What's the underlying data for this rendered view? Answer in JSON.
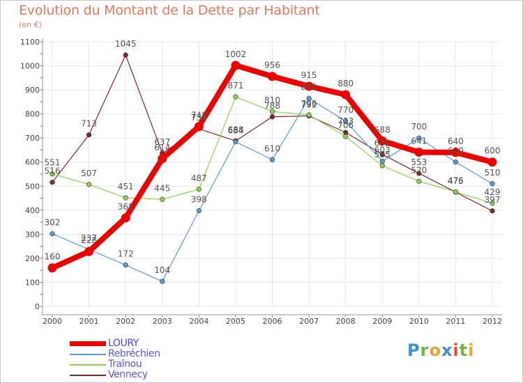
{
  "title": "Evolution du Montant de la Dette par Habitant",
  "subtitle": "(en €)",
  "logo": {
    "letters": [
      "P",
      "r",
      "o",
      "x",
      "i",
      "t",
      "i"
    ]
  },
  "chart_data": {
    "type": "line",
    "title": "Evolution du Montant de la Dette par Habitant",
    "ylabel": "(en €)",
    "xlabel": "",
    "ylim": [
      0,
      1100
    ],
    "yticks": [
      0,
      100,
      200,
      300,
      400,
      500,
      600,
      700,
      800,
      900,
      1000,
      1100
    ],
    "grid": true,
    "legend_position": "bottom-left",
    "x": [
      "2000",
      "2001",
      "2002",
      "2003",
      "2004",
      "2005",
      "2006",
      "2007",
      "2008",
      "2009",
      "2010",
      "2011",
      "2012"
    ],
    "series": [
      {
        "name": "LOURY",
        "color": "#ee0000",
        "values": [
          160,
          228,
          368,
          614,
          748,
          1002,
          956,
          915,
          880,
          688,
          641,
          640,
          600
        ]
      },
      {
        "name": "Rebréchien",
        "color": "#5b9bd5",
        "values": [
          302,
          237,
          172,
          104,
          398,
          684,
          610,
          865,
          770,
          603,
          700,
          600,
          510
        ]
      },
      {
        "name": "Traînou",
        "color": "#8fd14f",
        "values": [
          551,
          507,
          451,
          445,
          487,
          871,
          810,
          796,
          706,
          585,
          520,
          476,
          429
        ]
      },
      {
        "name": "Vennecy",
        "color": "#7b2b2b",
        "values": [
          516,
          713,
          1045,
          637,
          738,
          688,
          788,
          792,
          723,
          632,
          553,
          475,
          397
        ]
      }
    ],
    "data_labels": [
      [
        "160",
        "228",
        "368",
        "614",
        "748",
        "1002",
        "956",
        "915",
        "880",
        "688",
        "641",
        "640",
        "600"
      ],
      [
        "302",
        "237",
        "172",
        "104",
        "398",
        "684",
        "610",
        "865",
        "770",
        "603",
        "700",
        "600",
        "510"
      ],
      [
        "551",
        "507",
        "451",
        "445",
        "487",
        "871",
        "810",
        "796",
        "706",
        "585",
        "520",
        "476",
        "429"
      ],
      [
        "516",
        "713",
        "1045",
        "637",
        "738",
        "688",
        "788",
        "792",
        "723",
        "632",
        "553",
        "475",
        "397"
      ]
    ]
  }
}
